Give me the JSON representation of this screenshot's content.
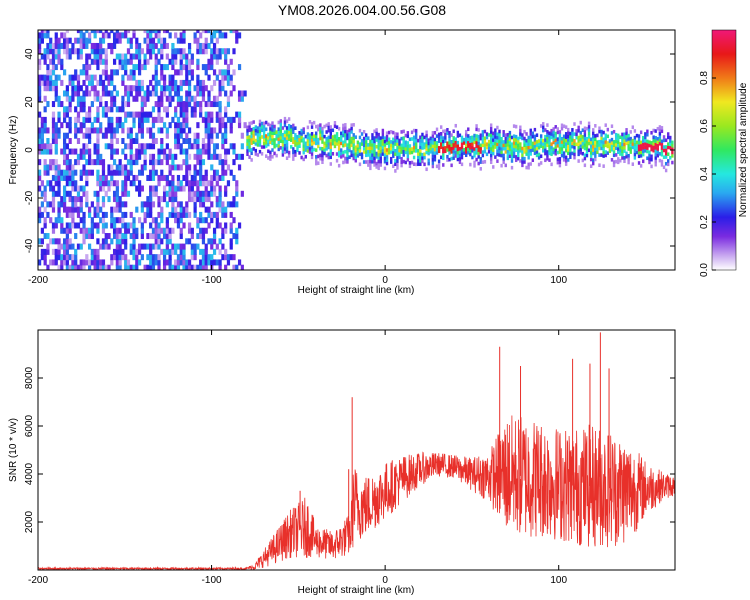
{
  "title": "YM08.2026.004.00.56.G08",
  "chart_data": [
    {
      "type": "heatmap",
      "xlabel": "Height of straight line (km)",
      "ylabel": "Frequency (Hz)",
      "xlim": [
        -200,
        167
      ],
      "ylim": [
        -50,
        50
      ],
      "xticks": [
        -200,
        -100,
        0,
        100
      ],
      "yticks": [
        -40,
        -20,
        0,
        20,
        40
      ],
      "colorbar": {
        "label": "Normalized spectral amplitude",
        "range": [
          0,
          1
        ],
        "ticks": [
          0.0,
          0.2,
          0.4,
          0.6,
          0.8
        ]
      },
      "bands": [
        {
          "region": "noise",
          "x": [
            -200,
            -80
          ],
          "y": [
            -50,
            50
          ],
          "amplitude": [
            0.05,
            0.35
          ]
        },
        {
          "region": "signal",
          "x": [
            -80,
            165
          ],
          "center_freq": [
            [
              -80,
              4
            ],
            [
              -70,
              5
            ],
            [
              -50,
              3
            ],
            [
              -30,
              2
            ],
            [
              0,
              0
            ],
            [
              25,
              0
            ],
            [
              45,
              1
            ],
            [
              80,
              1
            ],
            [
              110,
              2
            ],
            [
              140,
              1
            ],
            [
              165,
              0
            ]
          ],
          "half_width_hz": 4,
          "amplitude": [
            0.2,
            1.0
          ]
        }
      ]
    },
    {
      "type": "line",
      "xlabel": "Height of straight line (km)",
      "ylabel": "SNR (10 * v/v)",
      "xlim": [
        -200,
        167
      ],
      "ylim": [
        0,
        10000
      ],
      "xticks": [
        -200,
        -100,
        0,
        100
      ],
      "yticks": [
        2000,
        4000,
        6000,
        8000
      ],
      "series": [
        {
          "color": "#e8302a",
          "envelope": {
            "x": [
              -200,
              -120,
              -80,
              -75,
              -65,
              -55,
              -45,
              -40,
              -30,
              -20,
              -18,
              -15,
              -10,
              0,
              10,
              20,
              30,
              40,
              50,
              60,
              70,
              80,
              90,
              100,
              110,
              120,
              130,
              140,
              150,
              160,
              167
            ],
            "mean": [
              60,
              60,
              60,
              150,
              800,
              1500,
              1800,
              1200,
              1000,
              1500,
              2800,
              2600,
              2700,
              3300,
              3800,
              4200,
              4400,
              4300,
              4000,
              3900,
              4000,
              3900,
              3800,
              3600,
              3500,
              3500,
              3400,
              3300,
              3400,
              3500,
              3500
            ],
            "spread": [
              40,
              40,
              40,
              150,
              600,
              1000,
              1300,
              700,
              600,
              900,
              1800,
              1400,
              1300,
              1200,
              1000,
              700,
              500,
              500,
              700,
              1100,
              2500,
              2600,
              2500,
              2400,
              2500,
              2600,
              2500,
              2200,
              1200,
              600,
              400
            ]
          },
          "peaks": [
            [
              -19,
              7200
            ],
            [
              -21,
              4200
            ],
            [
              -49,
              3300
            ],
            [
              66,
              9300
            ],
            [
              78,
              8500
            ],
            [
              108,
              8800
            ],
            [
              118,
              8600
            ],
            [
              124,
              9900
            ],
            [
              129,
              8400
            ]
          ]
        }
      ]
    }
  ]
}
